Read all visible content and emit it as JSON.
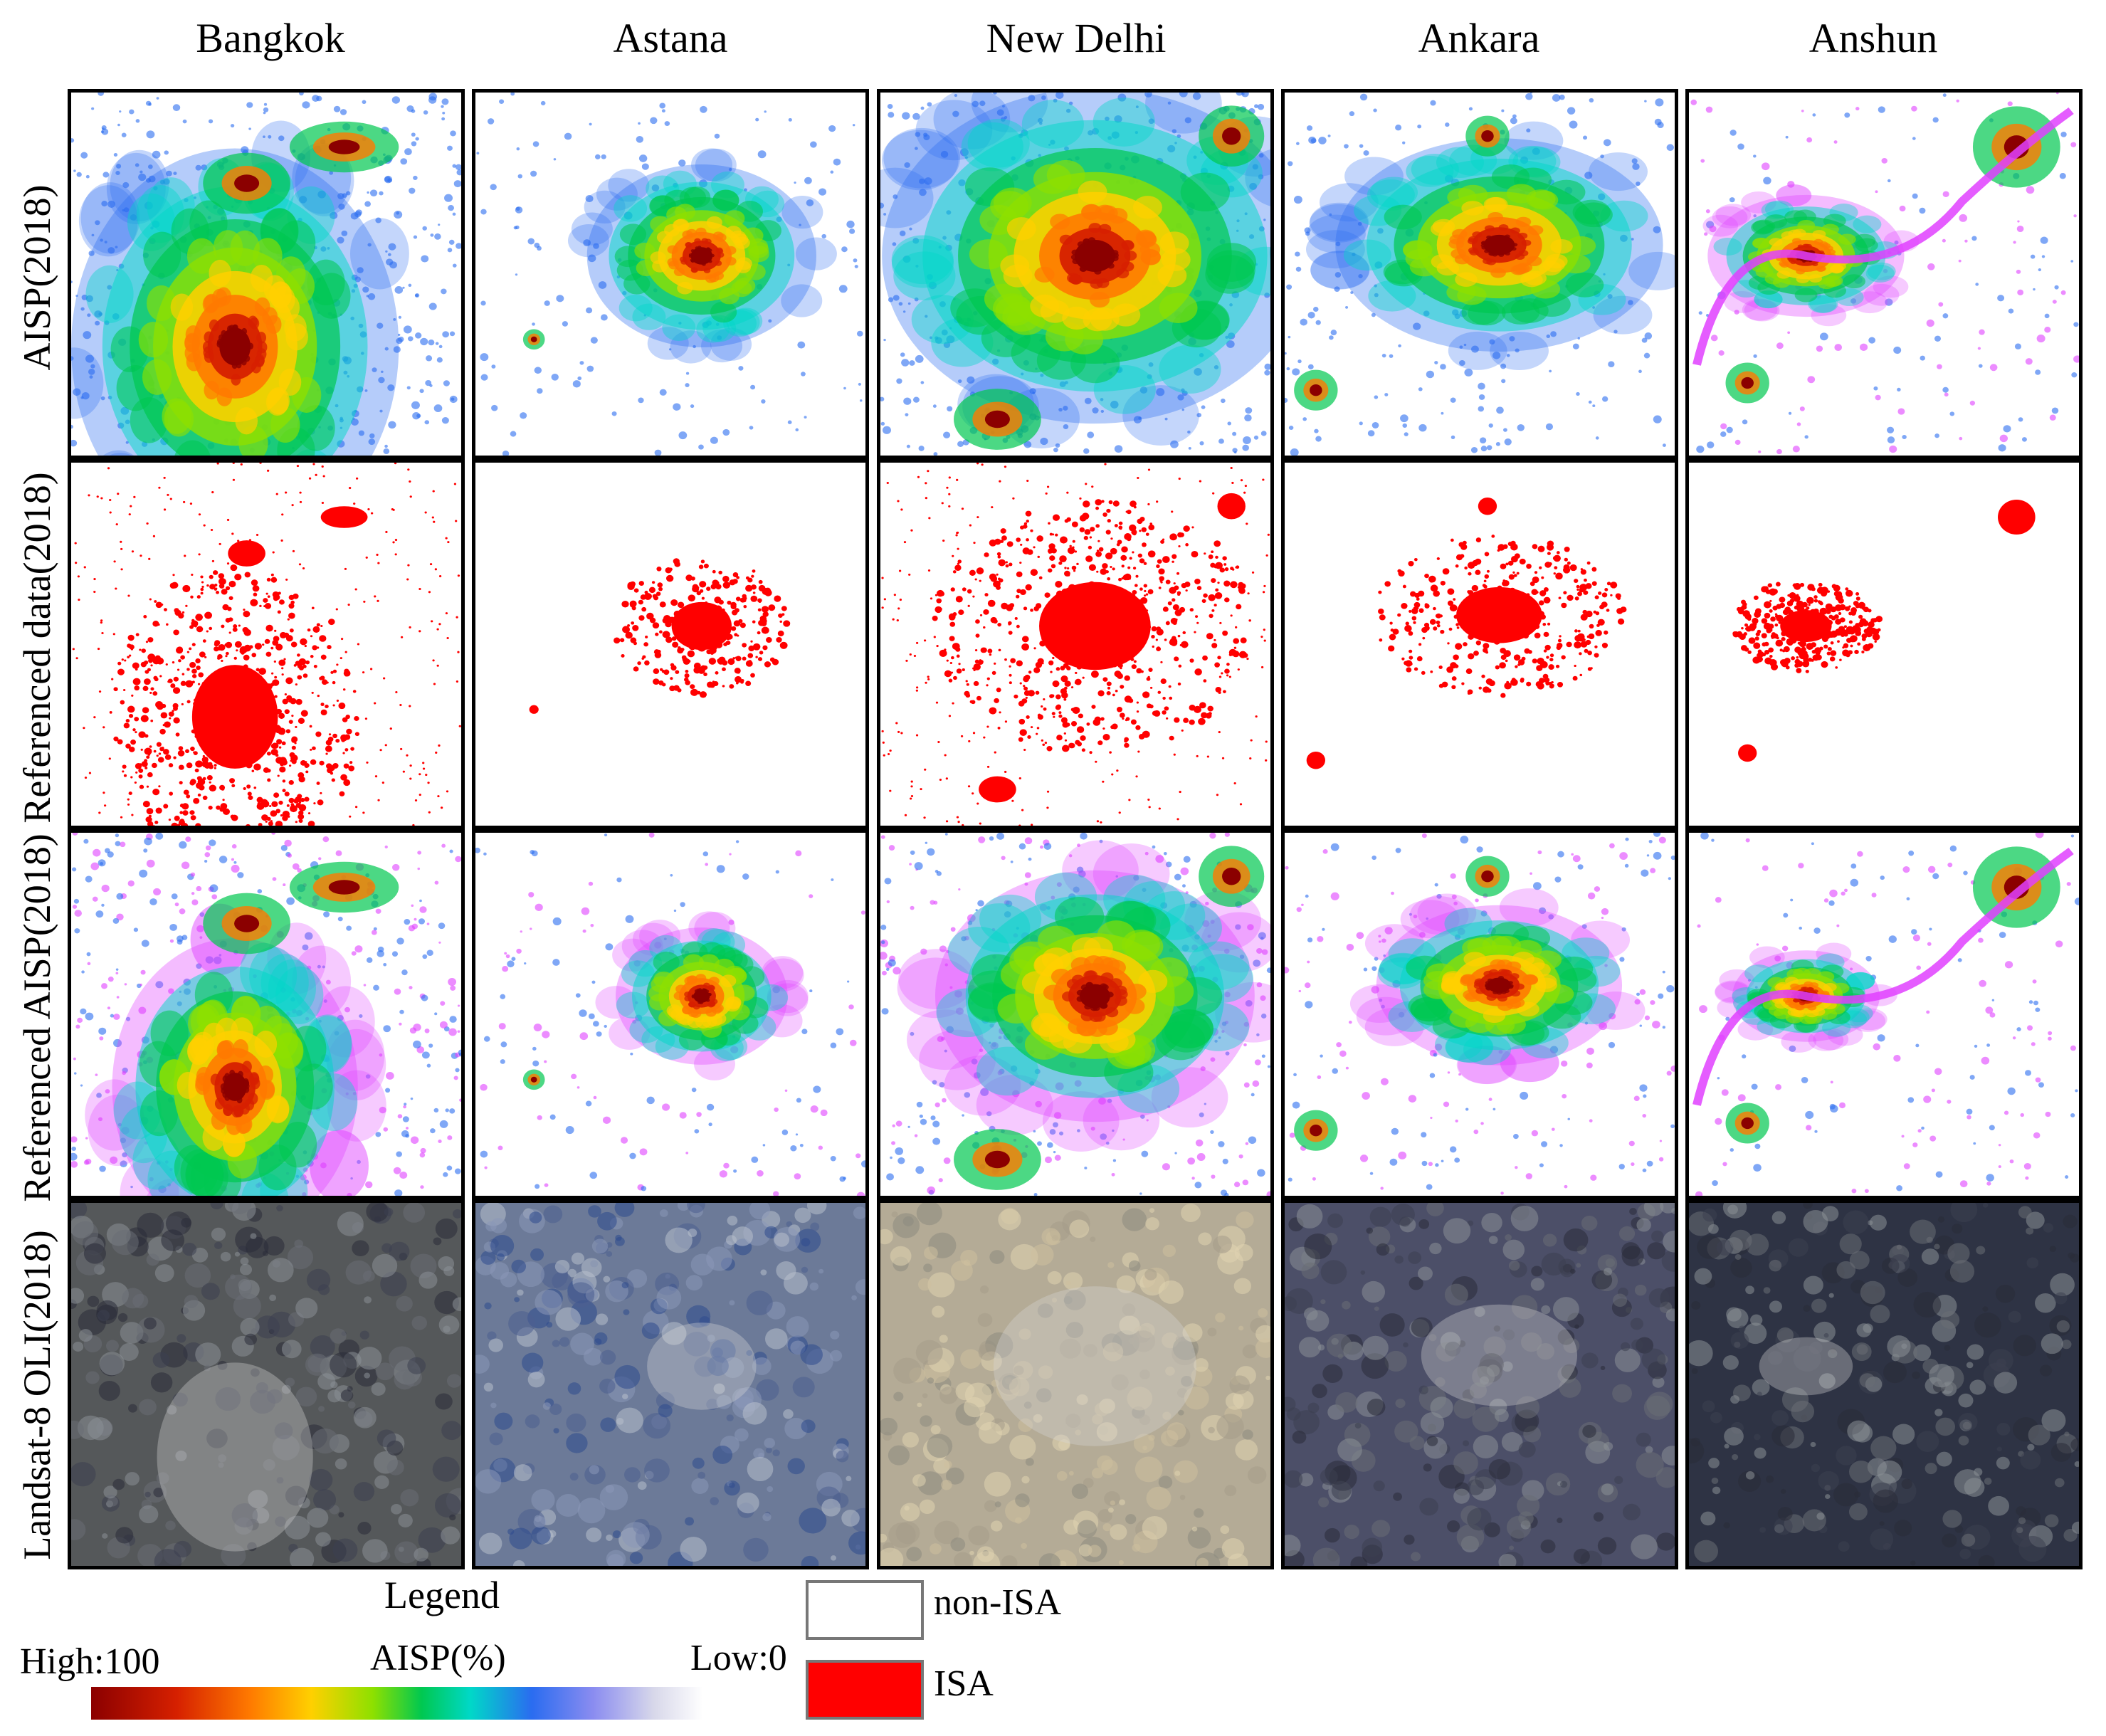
{
  "columns": [
    "Bangkok",
    "Astana",
    "New Delhi",
    "Ankara",
    "Anshun"
  ],
  "rows": [
    "AISP(2018)",
    "Referenced data(2018)",
    "Referenced AISP(2018)",
    "Landsat-8 OLI(2018)"
  ],
  "legend": {
    "title": "Legend",
    "high_label": "High:100",
    "low_label": "Low:0",
    "colorbar_label": "AISP(%)",
    "classes": [
      {
        "label": "non-ISA",
        "color": "#ffffff"
      },
      {
        "label": "ISA",
        "color": "#ff0000"
      }
    ]
  },
  "colors": {
    "aisp_ramp": [
      "#8b0000",
      "#d62000",
      "#ff7a00",
      "#ffd000",
      "#8ee000",
      "#00c850",
      "#00d8c8",
      "#2a6cf0",
      "#8a8cf0",
      "#d8d8ea",
      "#ffffff"
    ],
    "isa": "#ff0000",
    "anshun_low": "#e040ff"
  }
}
